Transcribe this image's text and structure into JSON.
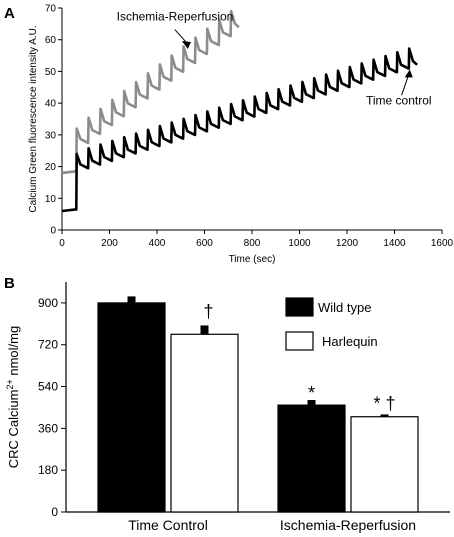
{
  "chart_data": [
    {
      "panel": "A",
      "type": "line",
      "ylabel": "Calcium Green fluorescence intensity A.U.",
      "xlabel": "Time (sec)",
      "xlim": [
        0,
        1600
      ],
      "ylim": [
        0,
        70
      ],
      "x_ticks": [
        0,
        200,
        400,
        600,
        800,
        1000,
        1200,
        1400,
        1600
      ],
      "y_ticks": [
        0,
        10,
        20,
        30,
        40,
        50,
        60,
        70
      ],
      "grid": false,
      "series": [
        {
          "name": "Ischemia-Reperfusion",
          "color": "#8c8c8c",
          "x_start": 0,
          "x_end": 745,
          "baseline_start": 18,
          "baseline_end": 65,
          "addition_interval": 50,
          "first_addition_time": 60,
          "first_addition_peak": 32,
          "spike_amplitude": 6,
          "values_note": "y rises stepwise from ~18 to ~65 with periodic calcium additions"
        },
        {
          "name": "Time control",
          "color": "#000000",
          "x_start": 0,
          "x_end": 1495,
          "baseline_start": 6,
          "baseline_end": 52,
          "addition_interval": 50,
          "first_addition_time": 60,
          "first_addition_peak": 24,
          "spike_amplitude": 6,
          "values_note": "y rises stepwise from ~6 to ~52 with periodic calcium additions"
        }
      ],
      "annotations": [
        {
          "text": "Ischemia-Reperfusion",
          "points_to_x": 530,
          "points_to_y": 58
        },
        {
          "text": "Time control",
          "points_to_x": 1460,
          "points_to_y": 50
        }
      ]
    },
    {
      "panel": "B",
      "type": "bar",
      "ylabel": "CRC Calcium2+ nmol/mg",
      "ylabel_parts": [
        "CRC Calcium",
        "2+",
        " nmol/mg"
      ],
      "categories": [
        "Time Control",
        "Ischemia-Reperfusion"
      ],
      "ylim": [
        0,
        990
      ],
      "y_ticks": [
        0,
        180,
        360,
        540,
        720,
        900
      ],
      "grid": false,
      "legend_position": "right",
      "series": [
        {
          "name": "Wild type",
          "color": "#000000",
          "values": [
            900,
            460
          ],
          "errors": [
            28,
            22
          ]
        },
        {
          "name": "Harlequin",
          "color": "#ffffff",
          "values": [
            765,
            410
          ],
          "errors": [
            38,
            10
          ]
        }
      ],
      "significance_markers": [
        {
          "category": 0,
          "series": 1,
          "text": "†"
        },
        {
          "category": 1,
          "series": 0,
          "text": "*"
        },
        {
          "category": 1,
          "series": 1,
          "text": "* †"
        }
      ]
    }
  ],
  "panel_labels": [
    "A",
    "B"
  ]
}
